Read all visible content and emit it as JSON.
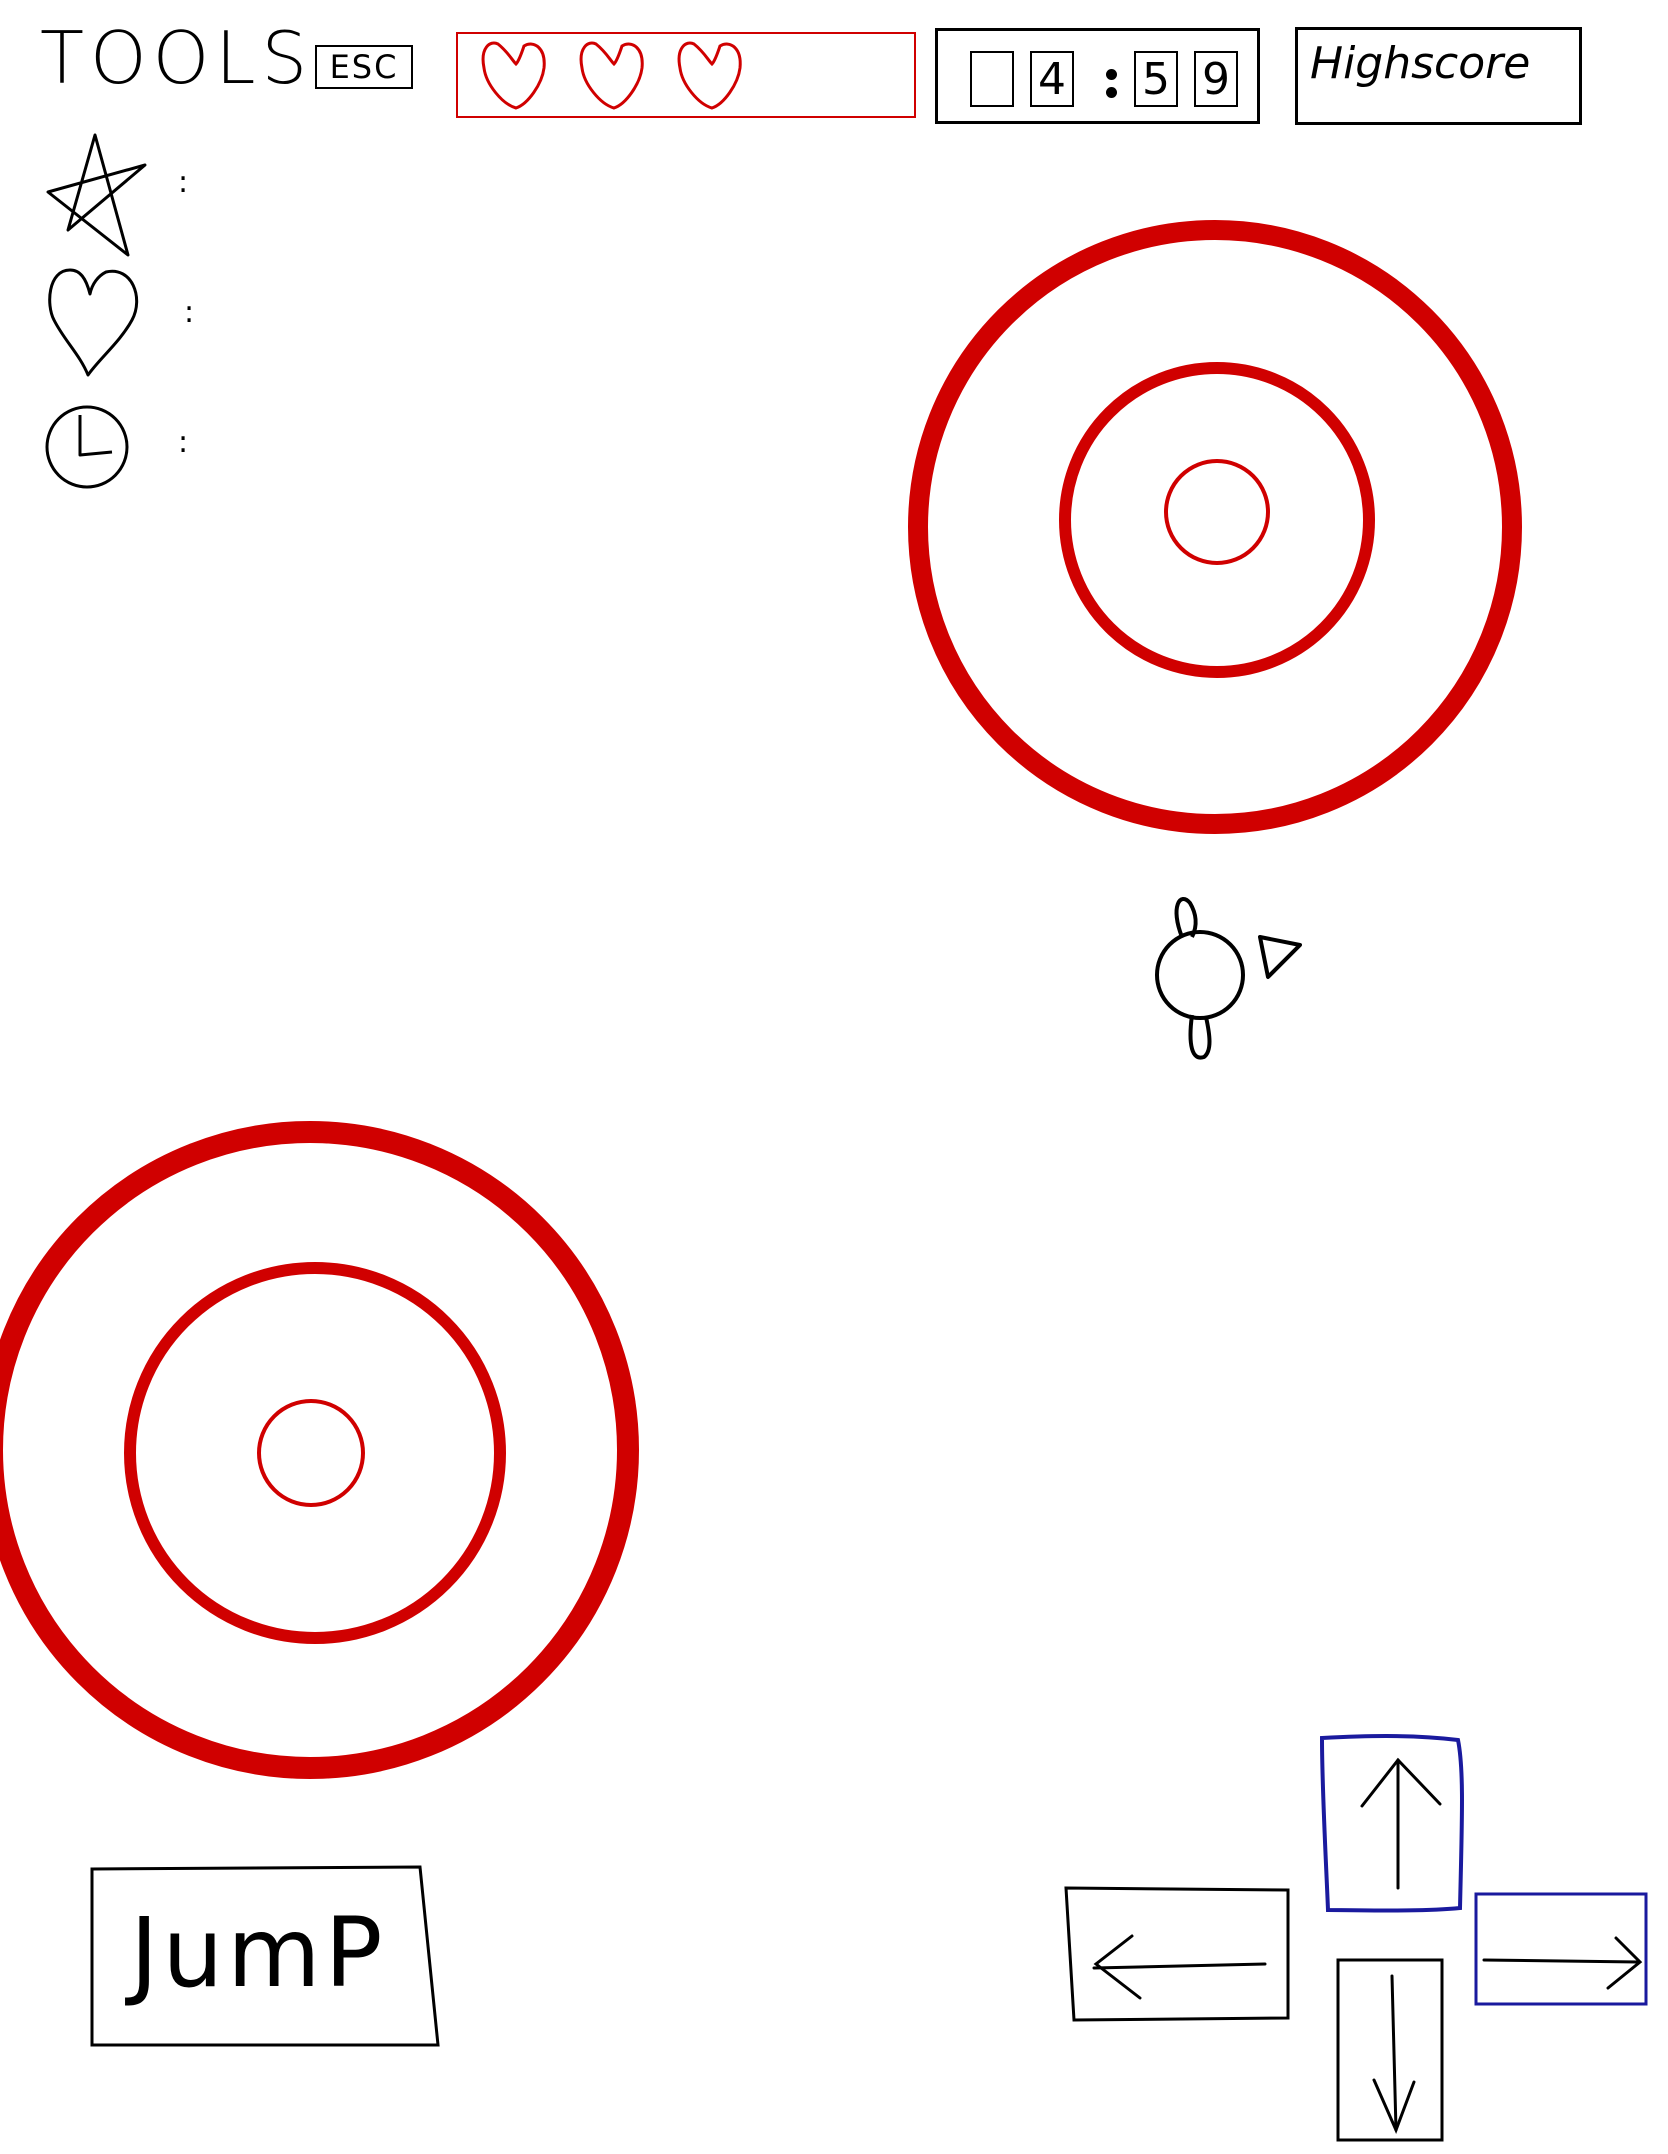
{
  "toolbar": {
    "title": "TOOLS",
    "esc_label": "ESC"
  },
  "tools": [
    {
      "icon": "star-icon",
      "separator": ":"
    },
    {
      "icon": "heart-icon",
      "separator": ":"
    },
    {
      "icon": "clock-icon",
      "separator": ":"
    }
  ],
  "lives": {
    "count": 3,
    "icon": "heart-icon",
    "color": "#d00000"
  },
  "timer": {
    "digits": [
      "",
      "4",
      "5",
      "9"
    ],
    "separator": ":"
  },
  "highscore": {
    "label": "Highscore"
  },
  "targets": {
    "color": "#d00000",
    "count": 2
  },
  "controls": {
    "jump_label": "JumP",
    "up_icon": "arrow-up-icon",
    "down_icon": "arrow-down-icon",
    "left_icon": "arrow-left-icon",
    "right_icon": "arrow-right-icon",
    "highlight_color": "#1a1a9e"
  }
}
